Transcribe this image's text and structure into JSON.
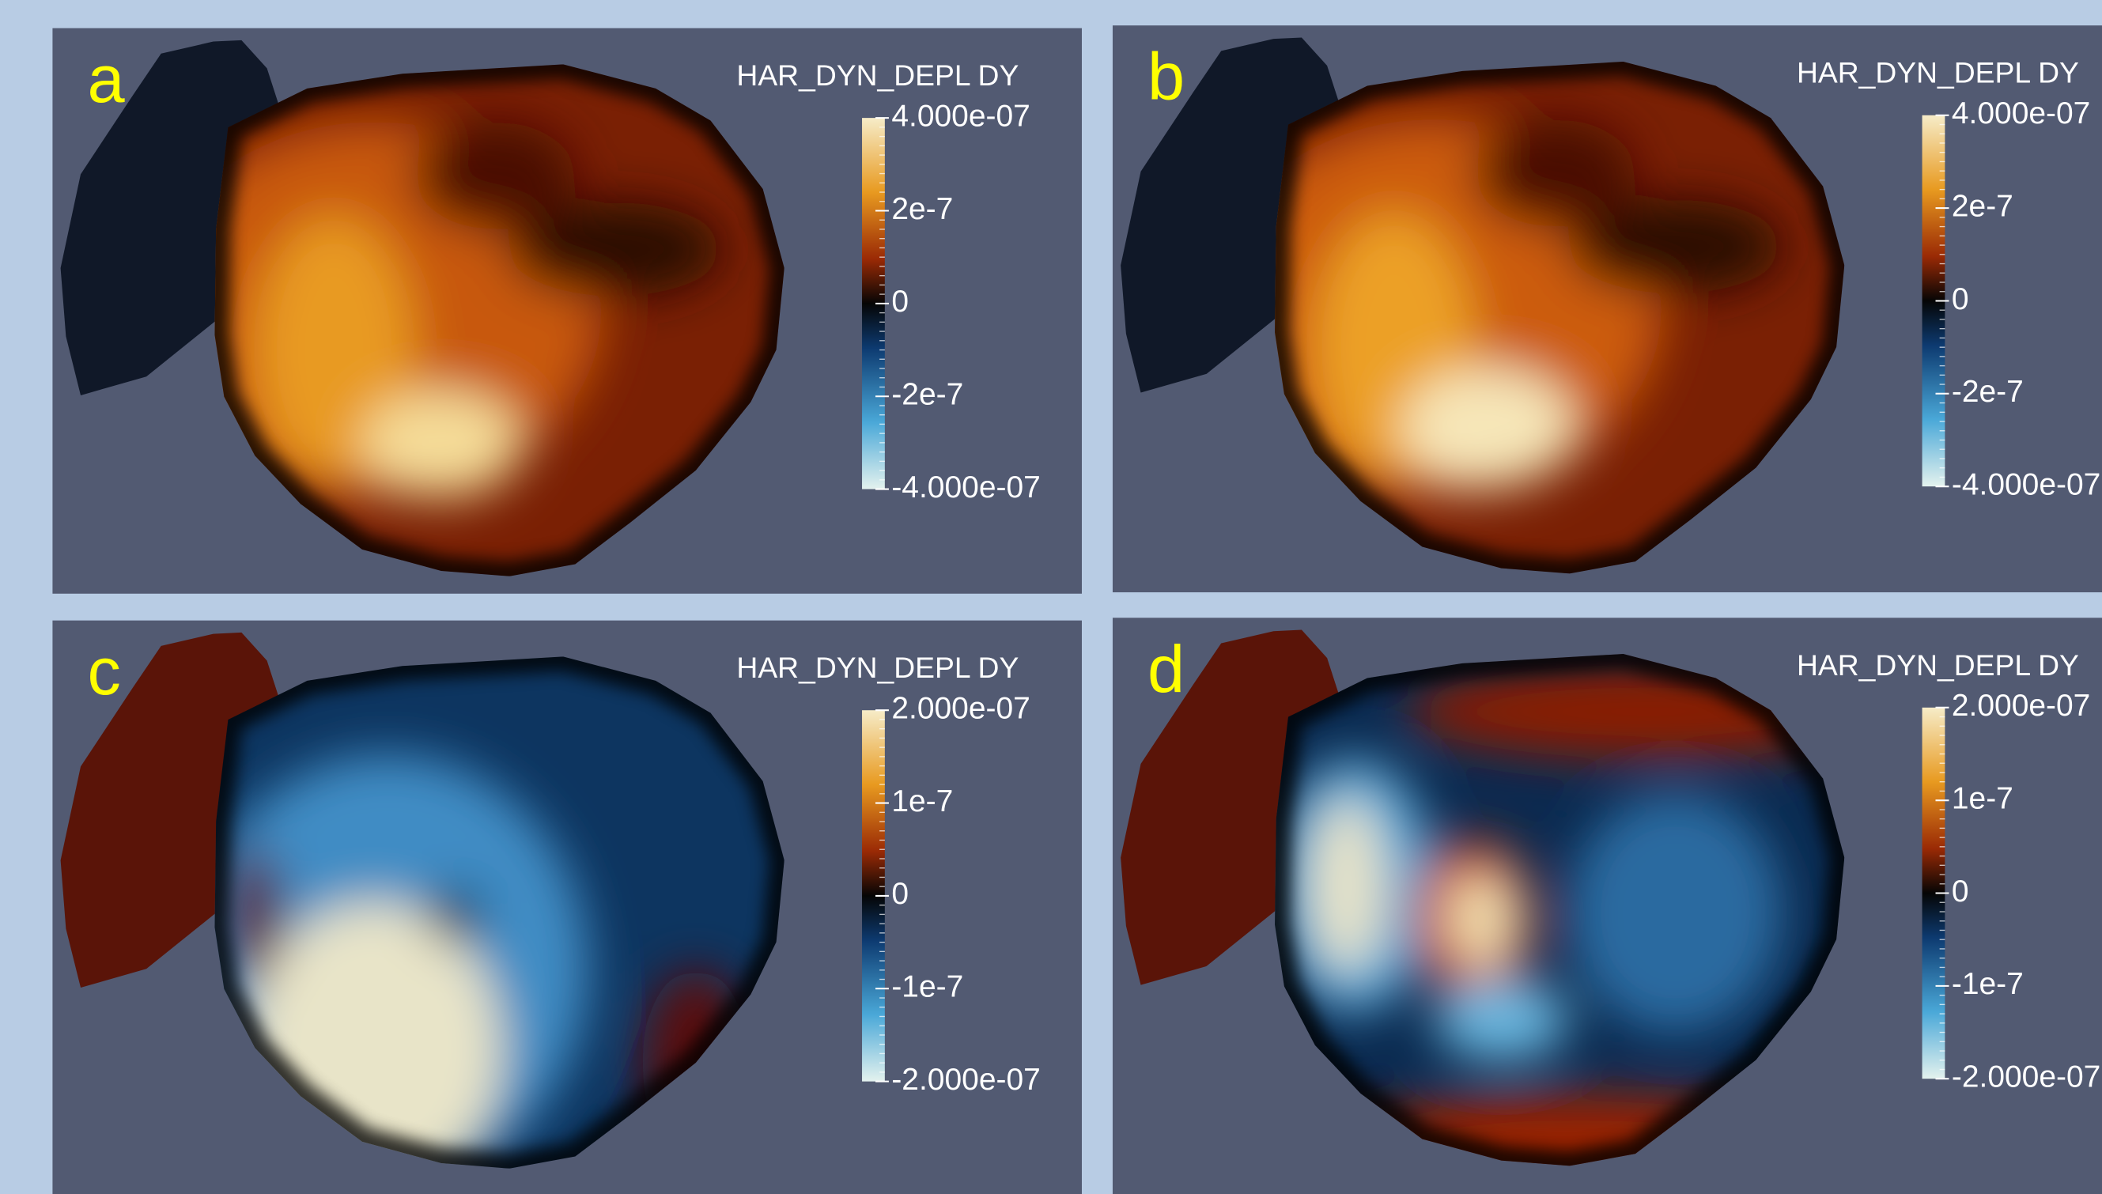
{
  "panels": [
    {
      "label": "a",
      "legend_title": "HAR_DYN_DEPL DY",
      "ticks": [
        "4.000e-07",
        "2e-7",
        "0",
        "-2e-7",
        "-4.000e-07"
      ]
    },
    {
      "label": "b",
      "legend_title": "HAR_DYN_DEPL DY",
      "ticks": [
        "4.000e-07",
        "2e-7",
        "0",
        "-2e-7",
        "-4.000e-07"
      ]
    },
    {
      "label": "c",
      "legend_title": "HAR_DYN_DEPL DY",
      "ticks": [
        "2.000e-07",
        "1e-7",
        "0",
        "-1e-7",
        "-2.000e-07"
      ]
    },
    {
      "label": "d",
      "legend_title": "HAR_DYN_DEPL DY",
      "ticks": [
        "2.000e-07",
        "1e-7",
        "0",
        "-1e-7",
        "-2.000e-07"
      ]
    }
  ]
}
